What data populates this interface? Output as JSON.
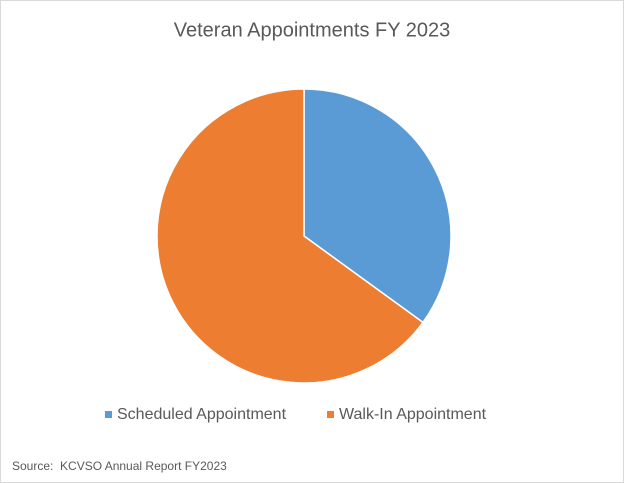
{
  "chart_data": {
    "type": "pie",
    "title": "Veteran Appointments FY 2023",
    "categories": [
      "Scheduled Appointment",
      "Walk-In Appointment"
    ],
    "values": [
      35,
      65
    ],
    "colors": [
      "#5b9bd5",
      "#ed7d31"
    ],
    "legend": "bottom",
    "source": "Source:  KCVSO Annual Report FY2023"
  }
}
